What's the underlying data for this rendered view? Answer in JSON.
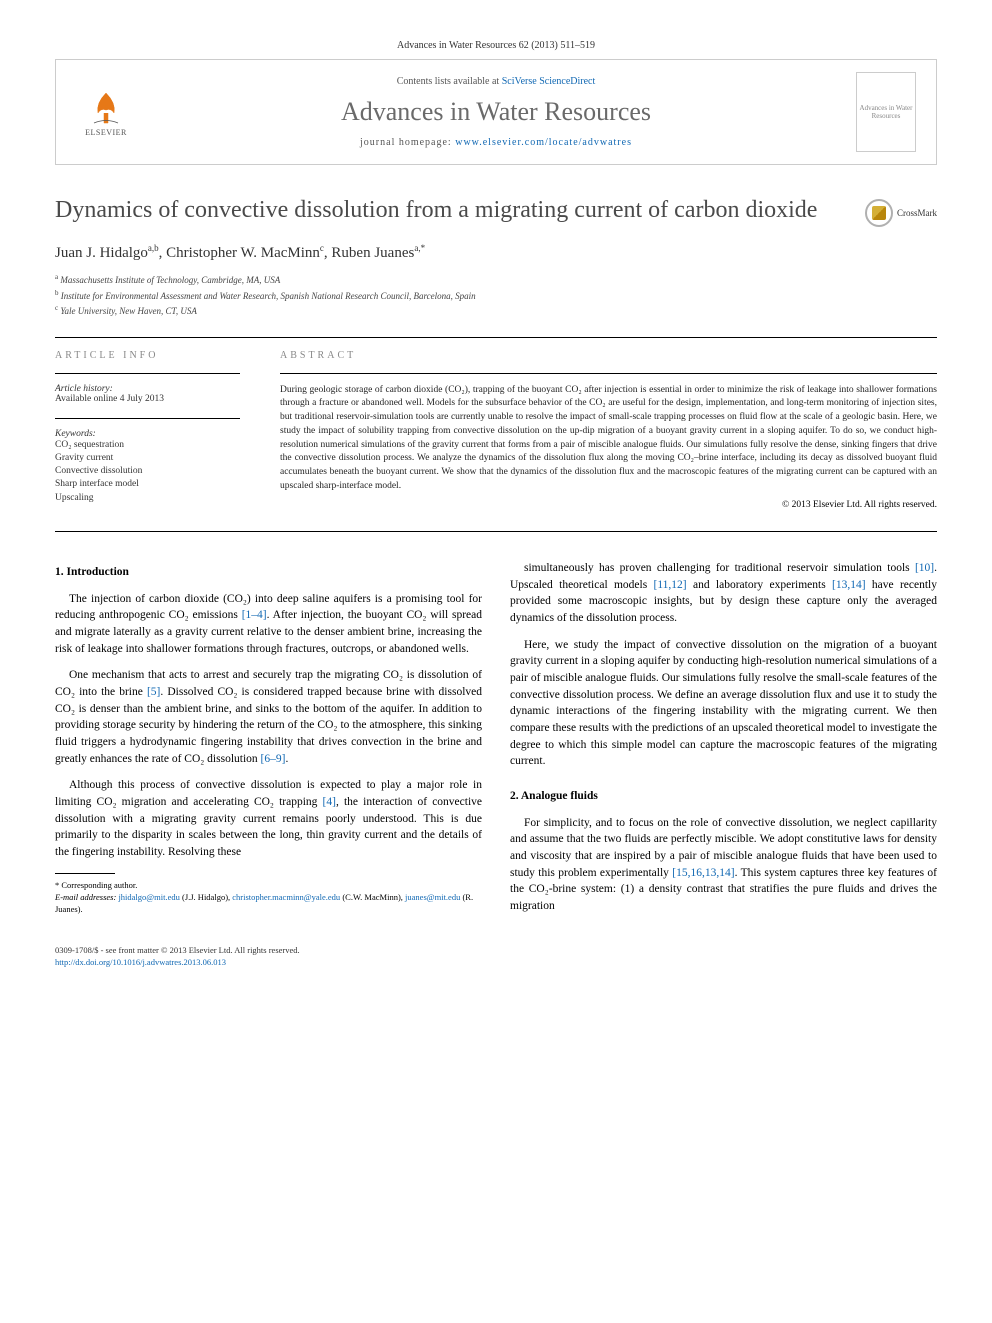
{
  "journal_ref": "Advances in Water Resources 62 (2013) 511–519",
  "header": {
    "contents_prefix": "Contents lists available at ",
    "contents_link": "SciVerse ScienceDirect",
    "journal_name": "Advances in Water Resources",
    "homepage_prefix": "journal homepage: ",
    "homepage_url": "www.elsevier.com/locate/advwatres",
    "publisher": "ELSEVIER",
    "cover_label": "Advances in Water Resources"
  },
  "crossmark": "CrossMark",
  "title": "Dynamics of convective dissolution from a migrating current of carbon dioxide",
  "authors_html": "Juan J. Hidalgo",
  "author_sup_1": "a,b",
  "author_2": ", Christopher W. MacMinn",
  "author_sup_2": "c",
  "author_3": ", Ruben Juanes",
  "author_sup_3": "a,",
  "author_star": "*",
  "affiliations": {
    "a": "Massachusetts Institute of Technology, Cambridge, MA, USA",
    "b": "Institute for Environmental Assessment and Water Research, Spanish National Research Council, Barcelona, Spain",
    "c": "Yale University, New Haven, CT, USA"
  },
  "info": {
    "heading": "ARTICLE INFO",
    "history_label": "Article history:",
    "history": "Available online 4 July 2013",
    "keywords_label": "Keywords:",
    "keywords": [
      "CO₂ sequestration",
      "Gravity current",
      "Convective dissolution",
      "Sharp interface model",
      "Upscaling"
    ]
  },
  "abstract": {
    "heading": "ABSTRACT",
    "text": "During geologic storage of carbon dioxide (CO₂), trapping of the buoyant CO₂ after injection is essential in order to minimize the risk of leakage into shallower formations through a fracture or abandoned well. Models for the subsurface behavior of the CO₂ are useful for the design, implementation, and long-term monitoring of injection sites, but traditional reservoir-simulation tools are currently unable to resolve the impact of small-scale trapping processes on fluid flow at the scale of a geologic basin. Here, we study the impact of solubility trapping from convective dissolution on the up-dip migration of a buoyant gravity current in a sloping aquifer. To do so, we conduct high-resolution numerical simulations of the gravity current that forms from a pair of miscible analogue fluids. Our simulations fully resolve the dense, sinking fingers that drive the convective dissolution process. We analyze the dynamics of the dissolution flux along the moving CO₂–brine interface, including its decay as dissolved buoyant fluid accumulates beneath the buoyant current. We show that the dynamics of the dissolution flux and the macroscopic features of the migrating current can be captured with an upscaled sharp-interface model.",
    "copyright": "© 2013 Elsevier Ltd. All rights reserved."
  },
  "sections": {
    "s1_heading": "1. Introduction",
    "s1_p1": "The injection of carbon dioxide (CO₂) into deep saline aquifers is a promising tool for reducing anthropogenic CO₂ emissions [1–4]. After injection, the buoyant CO₂ will spread and migrate laterally as a gravity current relative to the denser ambient brine, increasing the risk of leakage into shallower formations through fractures, outcrops, or abandoned wells.",
    "s1_p2": "One mechanism that acts to arrest and securely trap the migrating CO₂ is dissolution of CO₂ into the brine [5]. Dissolved CO₂ is considered trapped because brine with dissolved CO₂ is denser than the ambient brine, and sinks to the bottom of the aquifer. In addition to providing storage security by hindering the return of the CO₂ to the atmosphere, this sinking fluid triggers a hydrodynamic fingering instability that drives convection in the brine and greatly enhances the rate of CO₂ dissolution [6–9].",
    "s1_p3": "Although this process of convective dissolution is expected to play a major role in limiting CO₂ migration and accelerating CO₂ trapping [4], the interaction of convective dissolution with a migrating gravity current remains poorly understood. This is due primarily to the disparity in scales between the long, thin gravity current and the details of the fingering instability. Resolving these",
    "s1_p4": "simultaneously has proven challenging for traditional reservoir simulation tools [10]. Upscaled theoretical models [11,12] and laboratory experiments [13,14] have recently provided some macroscopic insights, but by design these capture only the averaged dynamics of the dissolution process.",
    "s1_p5": "Here, we study the impact of convective dissolution on the migration of a buoyant gravity current in a sloping aquifer by conducting high-resolution numerical simulations of a pair of miscible analogue fluids. Our simulations fully resolve the small-scale features of the convective dissolution process. We define an average dissolution flux and use it to study the dynamic interactions of the fingering instability with the migrating current. We then compare these results with the predictions of an upscaled theoretical model to investigate the degree to which this simple model can capture the macroscopic features of the migrating current.",
    "s2_heading": "2. Analogue fluids",
    "s2_p1": "For simplicity, and to focus on the role of convective dissolution, we neglect capillarity and assume that the two fluids are perfectly miscible. We adopt constitutive laws for density and viscosity that are inspired by a pair of miscible analogue fluids that have been used to study this problem experimentally [15,16,13,14]. This system captures three key features of the CO₂-brine system: (1) a density contrast that stratifies the pure fluids and drives the migration"
  },
  "footnotes": {
    "corresponding": "* Corresponding author.",
    "email_label": "E-mail addresses:",
    "e1": "jhidalgo@mit.edu",
    "e1n": " (J.J. Hidalgo), ",
    "e2": "christopher.macminn@yale.edu",
    "e2n": " (C.W. MacMinn), ",
    "e3": "juanes@mit.edu",
    "e3n": " (R. Juanes)."
  },
  "footer": {
    "line1": "0309-1708/$ - see front matter © 2013 Elsevier Ltd. All rights reserved.",
    "doi": "http://dx.doi.org/10.1016/j.advwatres.2013.06.013"
  },
  "colors": {
    "link": "#1168b3",
    "title_gray": "#4a4a4a",
    "journal_gray": "#6a6a6a"
  }
}
